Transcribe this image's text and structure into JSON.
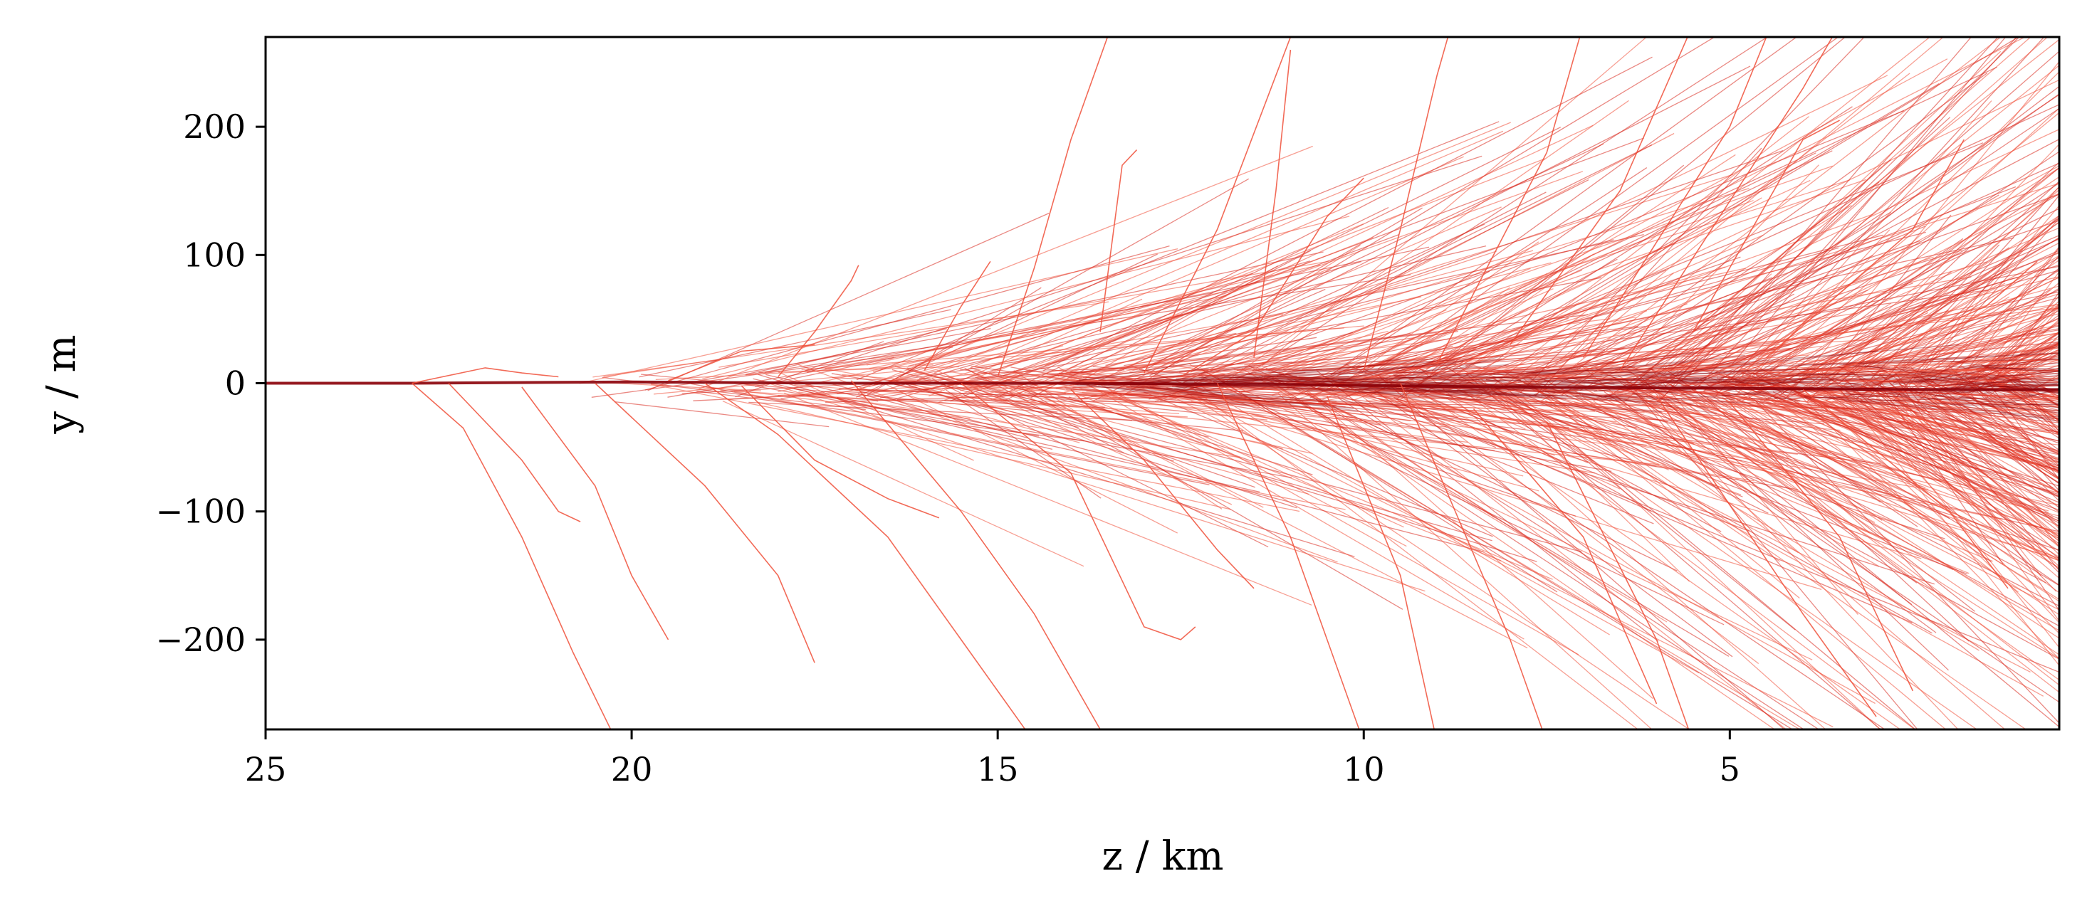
{
  "chart_data": {
    "type": "line",
    "title": "",
    "xlabel": "z / km",
    "ylabel": "y / m",
    "xlim": [
      25,
      0.5
    ],
    "ylim": [
      -270,
      270
    ],
    "x_inverted": true,
    "x_ticks": [
      25,
      20,
      15,
      10,
      5
    ],
    "x_tick_labels": [
      "25",
      "20",
      "15",
      "10",
      "5"
    ],
    "y_ticks": [
      200,
      100,
      0,
      -100,
      -200
    ],
    "y_tick_labels": [
      "200",
      "100",
      "0",
      "−100",
      "−200"
    ],
    "grid": false,
    "series_description": "Particle shower tracks: many thin red trajectories originating near z=23 km at y=0 and spreading laterally as z decreases.",
    "colors": {
      "track_light": "#f0503a",
      "track_mid": "#d8281e",
      "track_core": "#8a0008",
      "axes": "#000000",
      "background": "#ffffff"
    },
    "series": [
      {
        "name": "primary core",
        "points": [
          [
            25,
            0
          ],
          [
            23,
            0
          ],
          [
            20,
            1
          ],
          [
            17,
            0
          ],
          [
            14,
            0
          ],
          [
            11,
            -1
          ],
          [
            8,
            -3
          ],
          [
            5,
            -4
          ],
          [
            2,
            -5
          ],
          [
            0.5,
            -5
          ]
        ]
      },
      {
        "name": "track 1",
        "points": [
          [
            23,
            0
          ],
          [
            22.3,
            -35
          ],
          [
            21.5,
            -120
          ],
          [
            20.8,
            -210
          ],
          [
            20.2,
            -280
          ]
        ]
      },
      {
        "name": "track 2",
        "points": [
          [
            23,
            0
          ],
          [
            22,
            12
          ],
          [
            21.5,
            8
          ],
          [
            21,
            5
          ]
        ]
      },
      {
        "name": "track 3",
        "points": [
          [
            22.5,
            0
          ],
          [
            21.5,
            -60
          ],
          [
            21,
            -100
          ],
          [
            20.7,
            -108
          ]
        ]
      },
      {
        "name": "track 4",
        "points": [
          [
            21.5,
            -3
          ],
          [
            20.5,
            -80
          ],
          [
            20,
            -150
          ],
          [
            19.5,
            -200
          ]
        ]
      },
      {
        "name": "track 5",
        "points": [
          [
            20.5,
            0
          ],
          [
            19,
            -80
          ],
          [
            18,
            -150
          ],
          [
            17.5,
            -218
          ]
        ]
      },
      {
        "name": "track 6",
        "points": [
          [
            19,
            0
          ],
          [
            18,
            -40
          ],
          [
            16.5,
            -120
          ],
          [
            15.5,
            -200
          ],
          [
            14.5,
            -280
          ]
        ]
      },
      {
        "name": "track 7",
        "points": [
          [
            18,
            5
          ],
          [
            17.5,
            40
          ],
          [
            17,
            80
          ],
          [
            16.9,
            92
          ]
        ]
      },
      {
        "name": "track 8",
        "points": [
          [
            17,
            2
          ],
          [
            15.5,
            -100
          ],
          [
            14.5,
            -180
          ],
          [
            13.5,
            -280
          ]
        ]
      },
      {
        "name": "track 9",
        "points": [
          [
            16,
            10
          ],
          [
            15.5,
            60
          ],
          [
            15.1,
            95
          ]
        ]
      },
      {
        "name": "track 10",
        "points": [
          [
            15.5,
            0
          ],
          [
            14,
            -70
          ],
          [
            13,
            -190
          ],
          [
            12.5,
            -200
          ],
          [
            12.3,
            -190
          ]
        ]
      },
      {
        "name": "track 11",
        "points": [
          [
            15,
            5
          ],
          [
            14.5,
            90
          ],
          [
            14,
            190
          ],
          [
            13.5,
            270
          ]
        ]
      },
      {
        "name": "track 12",
        "points": [
          [
            13.6,
            40
          ],
          [
            13.3,
            170
          ],
          [
            13.1,
            182
          ]
        ]
      },
      {
        "name": "track 13",
        "points": [
          [
            13,
            8
          ],
          [
            12,
            120
          ],
          [
            11,
            270
          ]
        ]
      },
      {
        "name": "track 14",
        "points": [
          [
            12,
            0
          ],
          [
            11,
            -120
          ],
          [
            10.5,
            -200
          ],
          [
            10,
            -280
          ]
        ]
      },
      {
        "name": "track 15",
        "points": [
          [
            11.5,
            20
          ],
          [
            11.2,
            150
          ],
          [
            11,
            260
          ]
        ]
      },
      {
        "name": "track 16",
        "points": [
          [
            10.5,
            -10
          ],
          [
            9.5,
            -150
          ],
          [
            9,
            -280
          ]
        ]
      },
      {
        "name": "track 17",
        "points": [
          [
            10,
            10
          ],
          [
            9.5,
            120
          ],
          [
            9,
            240
          ],
          [
            8.8,
            280
          ]
        ]
      },
      {
        "name": "track 18",
        "points": [
          [
            9.5,
            0
          ],
          [
            8,
            -200
          ],
          [
            7.5,
            -280
          ]
        ]
      },
      {
        "name": "track 19",
        "points": [
          [
            9,
            15
          ],
          [
            7.5,
            180
          ],
          [
            7,
            280
          ]
        ]
      },
      {
        "name": "track 20",
        "points": [
          [
            8.5,
            -20
          ],
          [
            7,
            -120
          ],
          [
            6,
            -250
          ]
        ]
      },
      {
        "name": "track 21",
        "points": [
          [
            8,
            30
          ],
          [
            6.5,
            150
          ],
          [
            5.5,
            280
          ]
        ]
      },
      {
        "name": "track 22",
        "points": [
          [
            7.5,
            -30
          ],
          [
            6,
            -200
          ],
          [
            5.5,
            -280
          ]
        ]
      },
      {
        "name": "track 23",
        "points": [
          [
            7,
            20
          ],
          [
            5,
            200
          ],
          [
            4.5,
            270
          ]
        ]
      },
      {
        "name": "track 24",
        "points": [
          [
            6.5,
            10
          ],
          [
            4,
            230
          ],
          [
            3.5,
            280
          ]
        ]
      },
      {
        "name": "track 25",
        "points": [
          [
            6,
            -10
          ],
          [
            4,
            -180
          ],
          [
            3,
            -260
          ]
        ]
      },
      {
        "name": "track 26",
        "points": [
          [
            5.5,
            40
          ],
          [
            4,
            190
          ],
          [
            3.5,
            205
          ]
        ]
      },
      {
        "name": "track 27",
        "points": [
          [
            5,
            -15
          ],
          [
            3.5,
            -120
          ],
          [
            2.5,
            -240
          ]
        ]
      },
      {
        "name": "track 28",
        "points": [
          [
            4.5,
            20
          ],
          [
            2.5,
            120
          ],
          [
            1.8,
            190
          ]
        ]
      },
      {
        "name": "track 29",
        "points": [
          [
            4,
            -5
          ],
          [
            2,
            -100
          ],
          [
            1.2,
            -160
          ]
        ]
      },
      {
        "name": "track 30",
        "points": [
          [
            3.5,
            10
          ],
          [
            1.5,
            60
          ],
          [
            0.8,
            95
          ]
        ]
      },
      {
        "name": "track 31",
        "points": [
          [
            3,
            -20
          ],
          [
            1.5,
            -40
          ],
          [
            0.5,
            -75
          ]
        ]
      },
      {
        "name": "track 32",
        "points": [
          [
            19.5,
            2
          ],
          [
            18.5,
            25
          ],
          [
            17.5,
            30
          ]
        ]
      },
      {
        "name": "track 33",
        "points": [
          [
            18.5,
            -2
          ],
          [
            17.5,
            -60
          ],
          [
            16.5,
            -90
          ],
          [
            15.8,
            -105
          ]
        ]
      },
      {
        "name": "track 34",
        "points": [
          [
            14,
            -5
          ],
          [
            13,
            -60
          ],
          [
            12,
            -130
          ],
          [
            11.5,
            -160
          ]
        ]
      },
      {
        "name": "track 35",
        "points": [
          [
            12.5,
            5
          ],
          [
            11.5,
            40
          ],
          [
            10.5,
            130
          ],
          [
            10,
            160
          ]
        ]
      }
    ]
  }
}
